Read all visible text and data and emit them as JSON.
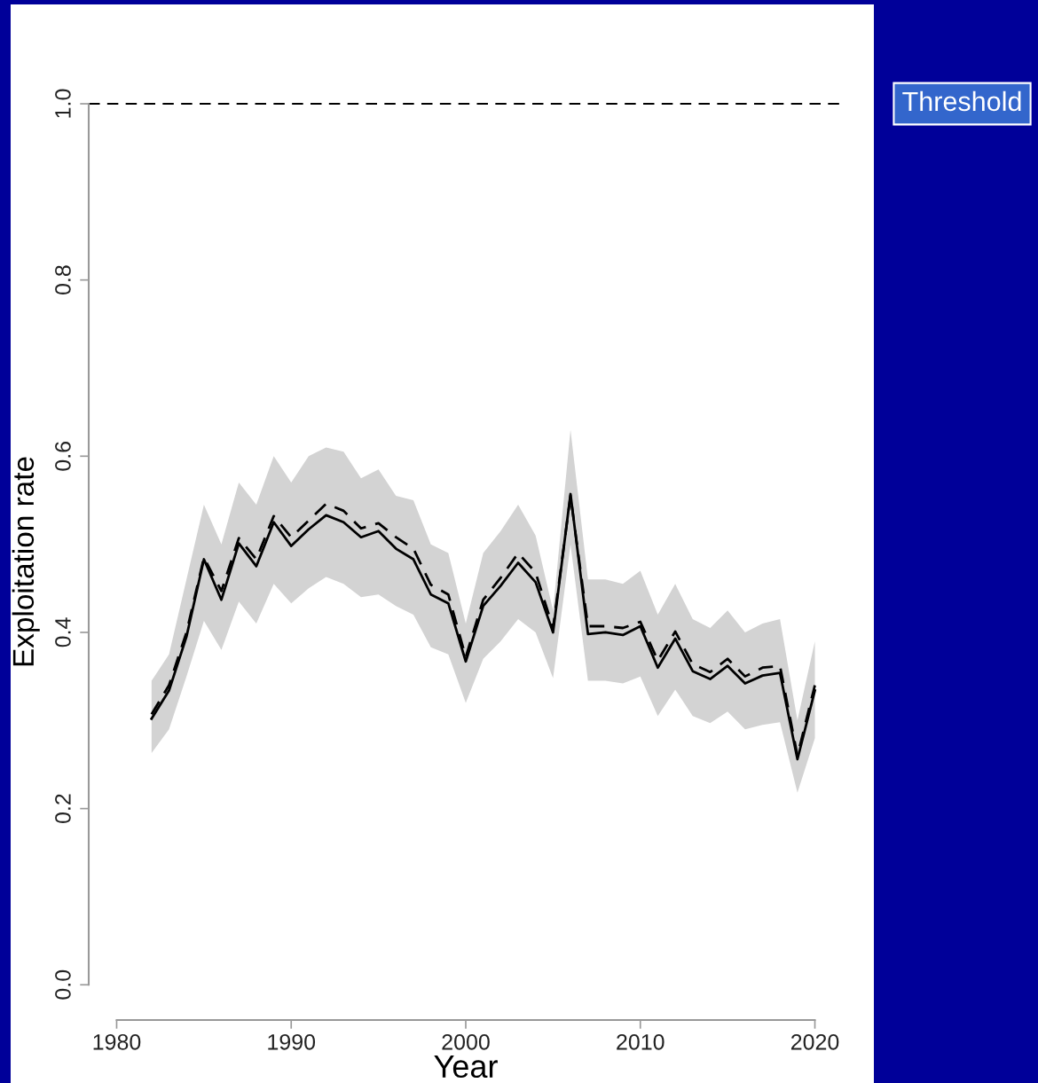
{
  "chart_data": {
    "type": "line",
    "xlabel": "Year",
    "ylabel": "Exploitation rate",
    "x": [
      1982,
      1983,
      1984,
      1985,
      1986,
      1987,
      1988,
      1989,
      1990,
      1991,
      1992,
      1993,
      1994,
      1995,
      1996,
      1997,
      1998,
      1999,
      2000,
      2001,
      2002,
      2003,
      2004,
      2005,
      2006,
      2007,
      2008,
      2009,
      2010,
      2011,
      2012,
      2013,
      2014,
      2015,
      2016,
      2017,
      2018,
      2019,
      2020
    ],
    "series": [
      {
        "color": "#000000",
        "line_style": "solid",
        "values": [
          0.302,
          0.334,
          0.395,
          0.483,
          0.437,
          0.501,
          0.475,
          0.525,
          0.498,
          0.517,
          0.533,
          0.525,
          0.508,
          0.515,
          0.495,
          0.483,
          0.443,
          0.433,
          0.367,
          0.43,
          0.453,
          0.479,
          0.457,
          0.4,
          0.557,
          0.398,
          0.4,
          0.397,
          0.407,
          0.36,
          0.393,
          0.356,
          0.347,
          0.362,
          0.342,
          0.351,
          0.354,
          0.256,
          0.334
        ],
        "lower": [
          0.263,
          0.29,
          0.35,
          0.413,
          0.38,
          0.435,
          0.41,
          0.455,
          0.433,
          0.45,
          0.463,
          0.455,
          0.44,
          0.443,
          0.43,
          0.42,
          0.383,
          0.375,
          0.32,
          0.37,
          0.39,
          0.415,
          0.4,
          0.348,
          0.5,
          0.345,
          0.345,
          0.342,
          0.35,
          0.305,
          0.335,
          0.305,
          0.297,
          0.31,
          0.29,
          0.295,
          0.298,
          0.218,
          0.28
        ],
        "upper": [
          0.345,
          0.375,
          0.46,
          0.545,
          0.5,
          0.57,
          0.545,
          0.6,
          0.57,
          0.6,
          0.61,
          0.605,
          0.575,
          0.585,
          0.555,
          0.55,
          0.5,
          0.49,
          0.41,
          0.49,
          0.515,
          0.545,
          0.51,
          0.425,
          0.63,
          0.46,
          0.46,
          0.455,
          0.47,
          0.42,
          0.455,
          0.415,
          0.405,
          0.425,
          0.4,
          0.41,
          0.415,
          0.3,
          0.39
        ]
      },
      {
        "color": "#000000",
        "line_style": "dashed",
        "values": [
          0.307,
          0.34,
          0.4,
          0.485,
          0.447,
          0.507,
          0.483,
          0.532,
          0.508,
          0.527,
          0.546,
          0.538,
          0.518,
          0.524,
          0.508,
          0.495,
          0.454,
          0.443,
          0.372,
          0.437,
          0.462,
          0.49,
          0.468,
          0.405,
          0.555,
          0.407,
          0.407,
          0.405,
          0.412,
          0.368,
          0.401,
          0.364,
          0.355,
          0.37,
          0.35,
          0.36,
          0.362,
          0.26,
          0.34
        ]
      }
    ],
    "ref_lines": [
      {
        "axis": "y",
        "value": 1.0,
        "label": "Threshold",
        "color": "#000000",
        "line_style": "dashed"
      }
    ],
    "xlim": [
      1978.4,
      2021.6
    ],
    "ylim": [
      -0.04,
      1.0
    ],
    "xticks": [
      1980,
      1990,
      2000,
      2010,
      2020
    ],
    "yticks": [
      {
        "value": 0,
        "label": "0.0"
      },
      {
        "value": 0.2,
        "label": "0.2"
      },
      {
        "value": 0.4,
        "label": "0.4"
      },
      {
        "value": 0.6,
        "label": "0.6"
      },
      {
        "value": 0.8,
        "label": "0.8"
      },
      {
        "value": 1.0,
        "label": "1.0"
      }
    ],
    "grid": false,
    "marker": "none"
  }
}
